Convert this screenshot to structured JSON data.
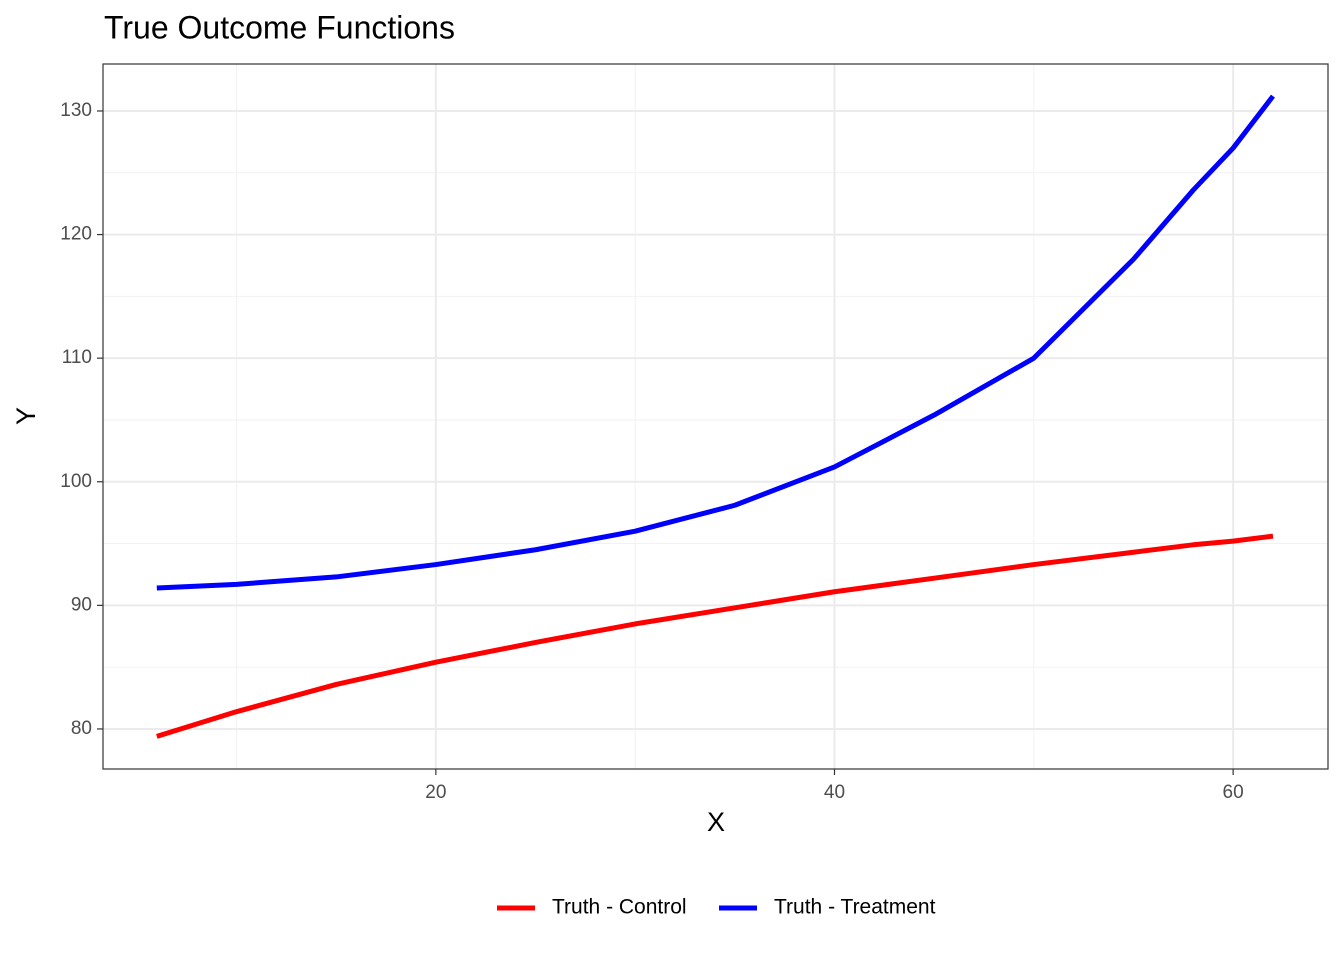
{
  "chart_data": {
    "type": "line",
    "title": "True Outcome Functions",
    "x_label": "X",
    "y_label": "Y",
    "x": [
      6,
      10,
      15,
      20,
      25,
      30,
      35,
      40,
      45,
      50,
      55,
      58,
      60,
      62
    ],
    "series": [
      {
        "name": "Truth - Control",
        "color": "#ff0000",
        "values": [
          79.4,
          81.4,
          83.6,
          85.4,
          87.0,
          88.5,
          89.8,
          91.1,
          92.2,
          93.3,
          94.3,
          94.9,
          95.2,
          95.6
        ]
      },
      {
        "name": "Truth - Treatment",
        "color": "#0000ff",
        "values": [
          91.4,
          91.7,
          92.3,
          93.3,
          94.5,
          96.0,
          98.1,
          101.2,
          105.4,
          110.0,
          118.0,
          123.6,
          127.0,
          131.2
        ]
      }
    ],
    "xlim": [
      3.3,
      64.76
    ],
    "ylim": [
      76.76,
      133.8
    ],
    "xticks": [
      20,
      40,
      60
    ],
    "yticks": [
      80,
      90,
      100,
      110,
      120,
      130
    ],
    "x_minor_grid": [
      10,
      30,
      50
    ],
    "y_minor_grid": [
      85,
      95,
      105,
      115,
      125
    ],
    "grid": true,
    "legend": "bottom"
  }
}
